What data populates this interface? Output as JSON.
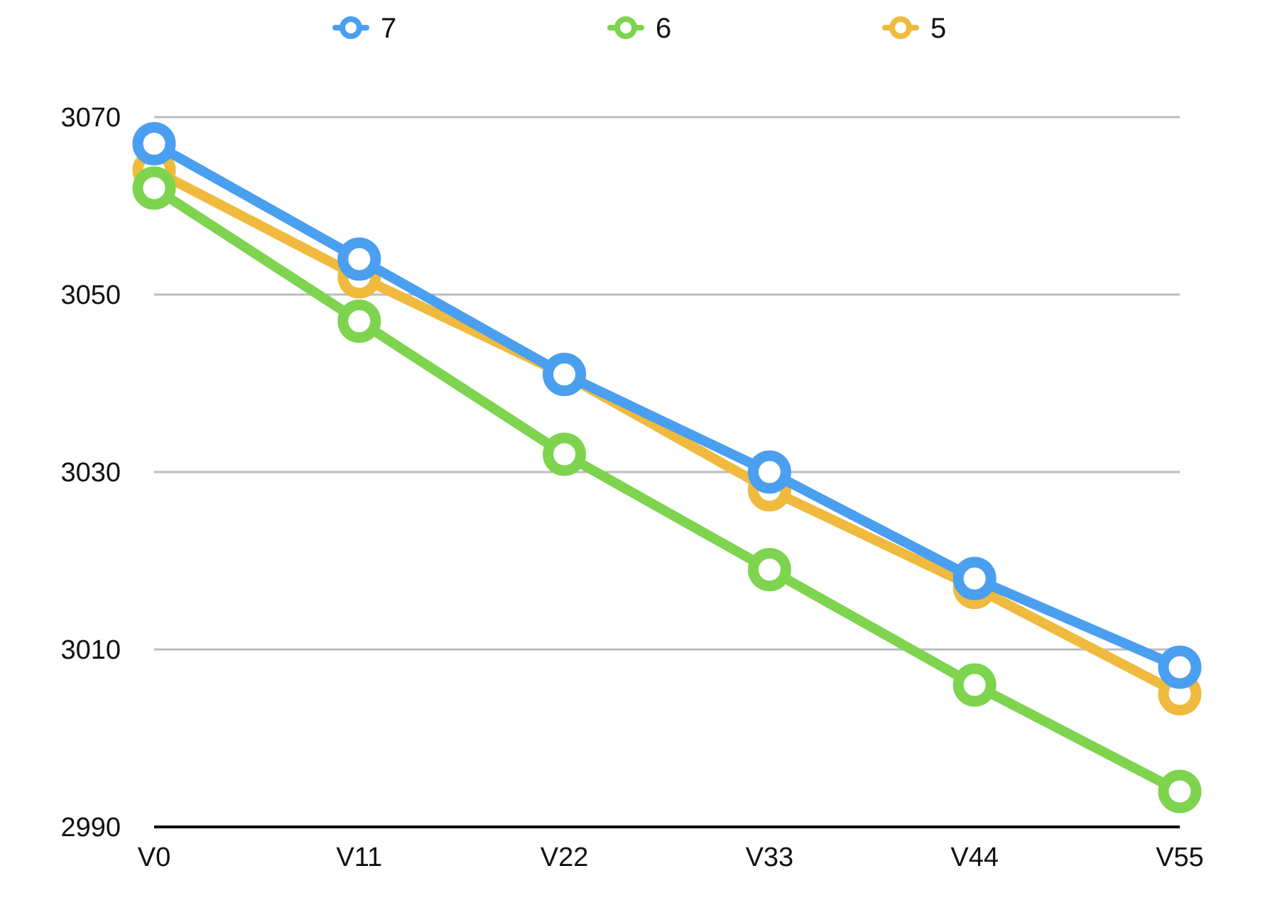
{
  "chart_data": {
    "type": "line",
    "categories": [
      "V0",
      "V11",
      "V22",
      "V33",
      "V44",
      "V55"
    ],
    "series": [
      {
        "name": "7",
        "color": "#4A9FF0",
        "values": [
          3067,
          3054,
          3041,
          3030,
          3018,
          3008
        ]
      },
      {
        "name": "6",
        "color": "#7ED44E",
        "values": [
          3062,
          3047,
          3032,
          3019,
          3006,
          2994
        ]
      },
      {
        "name": "5",
        "color": "#EFBA3D",
        "values": [
          3064,
          3052,
          3041,
          3028,
          3017,
          3005
        ]
      }
    ],
    "yticks": [
      "3070",
      "3050",
      "3030",
      "3010",
      "2990"
    ],
    "ylim": [
      2990,
      3070
    ],
    "grid": true,
    "legend": "top"
  }
}
